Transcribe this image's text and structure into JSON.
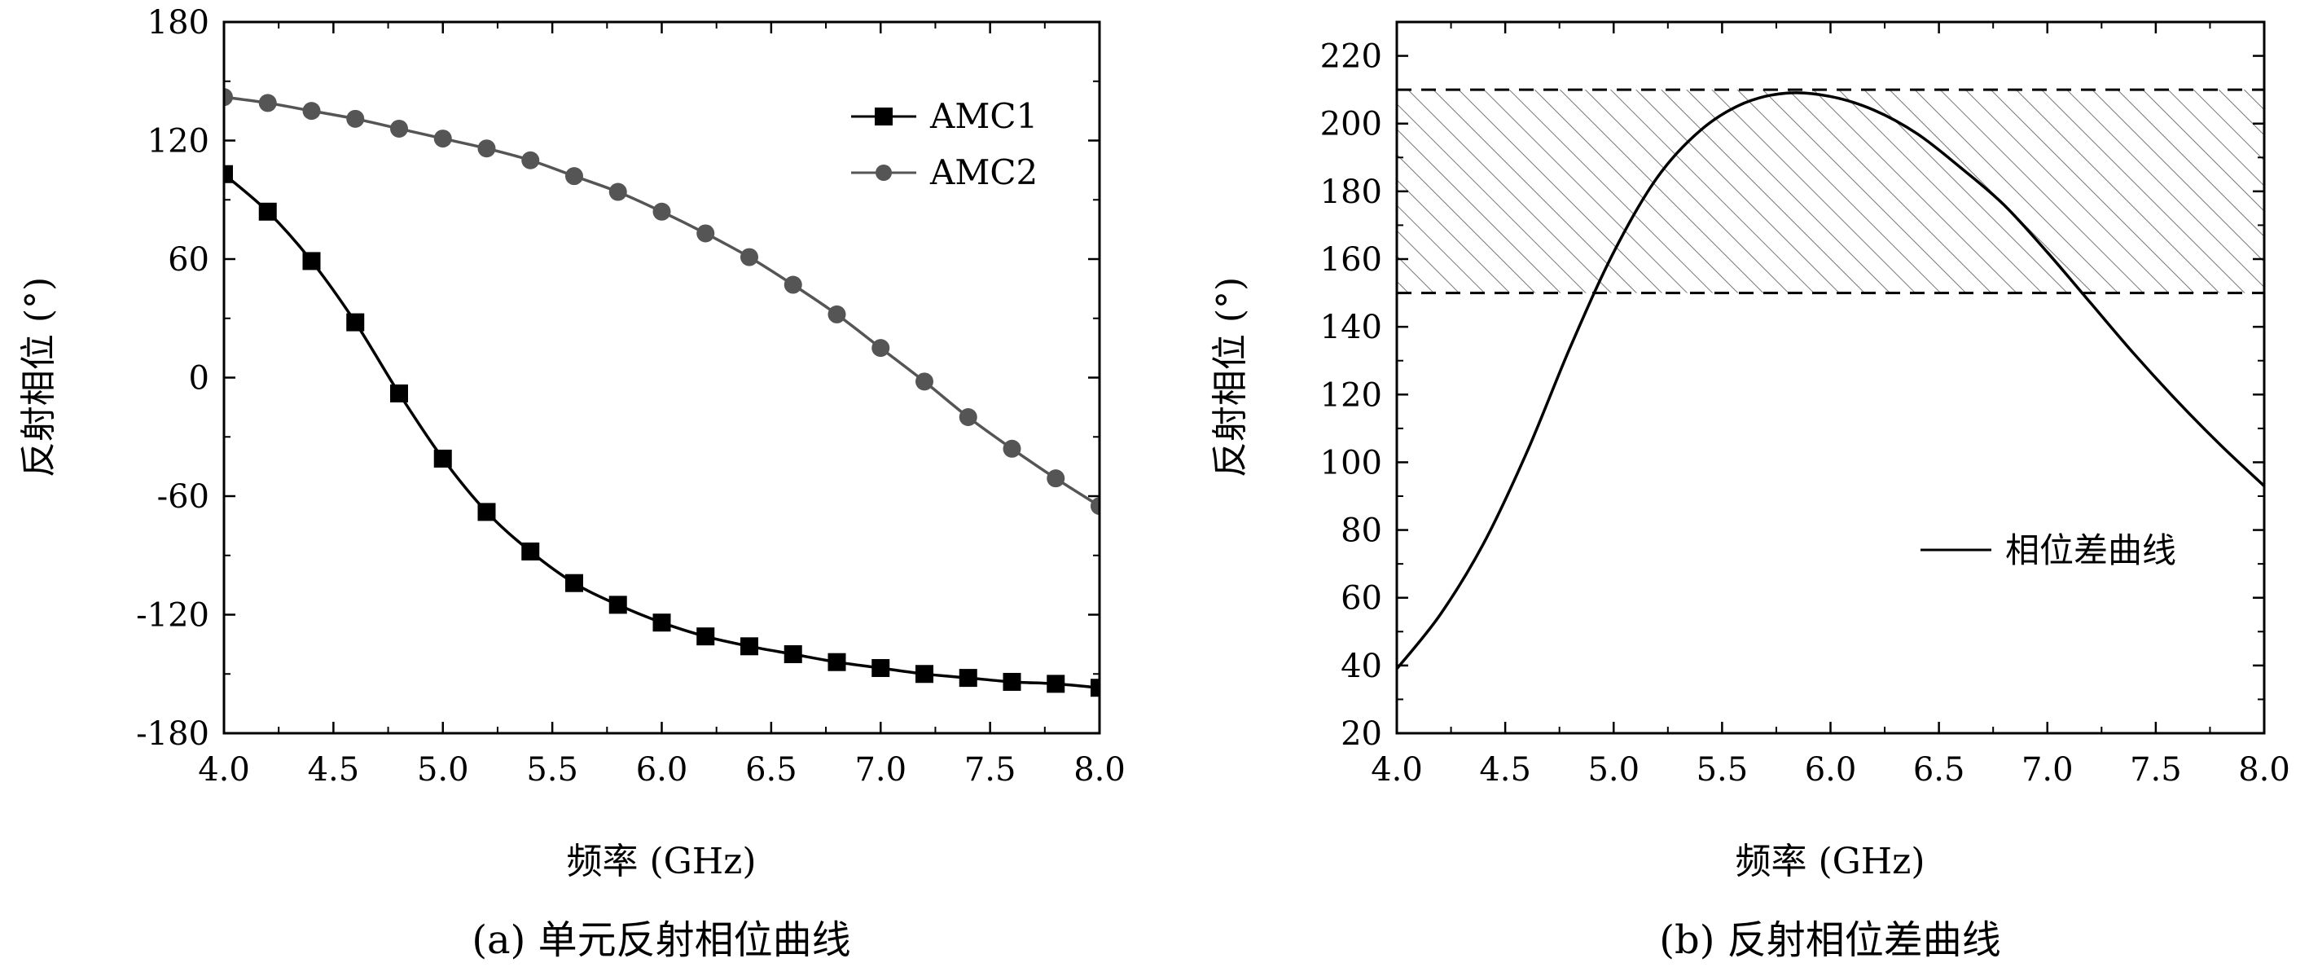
{
  "chart_data": [
    {
      "type": "line",
      "caption": "(a) 单元反射相位曲线",
      "xlabel": "频率 (GHz)",
      "ylabel": "反射相位 (°)",
      "xlim": [
        4.0,
        8.0
      ],
      "ylim": [
        -180,
        180
      ],
      "xticks": [
        "4.0",
        "4.5",
        "5.0",
        "5.5",
        "6.0",
        "6.5",
        "7.0",
        "7.5",
        "8.0"
      ],
      "yticks": [
        "-180",
        "-120",
        "-60",
        "0",
        "60",
        "120",
        "180"
      ],
      "legend_position": "top-right",
      "x": [
        4.0,
        4.2,
        4.4,
        4.6,
        4.8,
        5.0,
        5.2,
        5.4,
        5.6,
        5.8,
        6.0,
        6.2,
        6.4,
        6.6,
        6.8,
        7.0,
        7.2,
        7.4,
        7.6,
        7.8,
        8.0
      ],
      "series": [
        {
          "name": "AMC1",
          "marker": "square",
          "color": "#000000",
          "values": [
            103,
            84,
            59,
            28,
            -8,
            -41,
            -68,
            -88,
            -104,
            -115,
            -124,
            -131,
            -136,
            -140,
            -144,
            -147,
            -150,
            -152,
            -154,
            -155,
            -157
          ]
        },
        {
          "name": "AMC2",
          "marker": "circle",
          "color": "#555555",
          "values": [
            142,
            139,
            135,
            131,
            126,
            121,
            116,
            110,
            102,
            94,
            84,
            73,
            61,
            47,
            32,
            15,
            -2,
            -20,
            -36,
            -51,
            -65
          ]
        }
      ]
    },
    {
      "type": "line",
      "caption": "(b) 反射相位差曲线",
      "xlabel": "频率 (GHz)",
      "ylabel": "反射相位 (°)",
      "xlim": [
        4.0,
        8.0
      ],
      "ylim": [
        20,
        230
      ],
      "xticks": [
        "4.0",
        "4.5",
        "5.0",
        "5.5",
        "6.0",
        "6.5",
        "7.0",
        "7.5",
        "8.0"
      ],
      "yticks": [
        "20",
        "40",
        "60",
        "80",
        "100",
        "120",
        "140",
        "160",
        "180",
        "200",
        "220"
      ],
      "legend_position": "right",
      "band": [
        150,
        210
      ],
      "x": [
        4.0,
        4.2,
        4.4,
        4.6,
        4.8,
        5.0,
        5.2,
        5.4,
        5.6,
        5.8,
        6.0,
        6.2,
        6.4,
        6.6,
        6.8,
        7.0,
        7.2,
        7.4,
        7.6,
        7.8,
        8.0
      ],
      "series": [
        {
          "name": "相位差曲线",
          "color": "#000000",
          "values": [
            39,
            55,
            76,
            103,
            134,
            162,
            184,
            198,
            206,
            209,
            208,
            204,
            197,
            187,
            176,
            162,
            147,
            132,
            118,
            105,
            93
          ]
        }
      ]
    }
  ]
}
